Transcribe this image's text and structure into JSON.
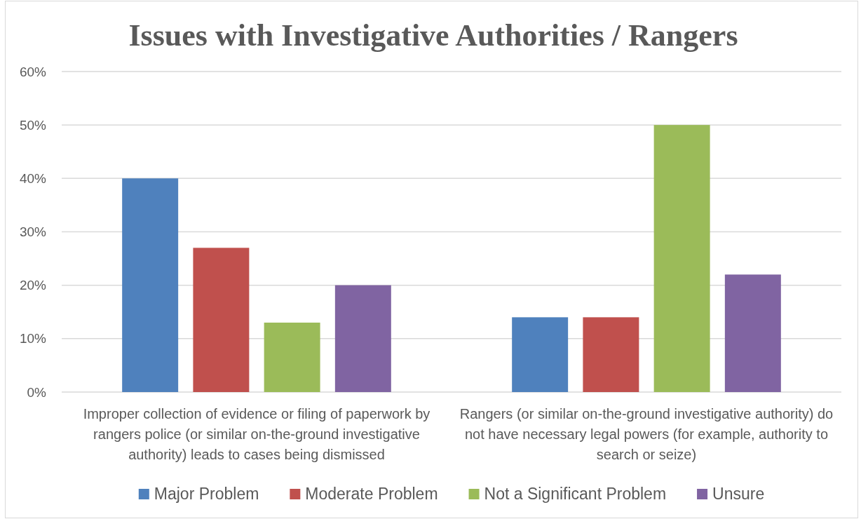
{
  "chart_data": {
    "type": "bar",
    "title": "Issues with Investigative Authorities / Rangers",
    "categories": [
      "Improper collection of evidence or filing of paperwork by rangers police (or similar on-the-ground investigative authority) leads to cases being dismissed",
      "Rangers (or similar on-the-ground investigative authority) do not have necessary legal powers (for example, authority to search or seize)"
    ],
    "series": [
      {
        "name": "Major Problem",
        "color": "#4f81bd",
        "values": [
          40,
          14
        ]
      },
      {
        "name": "Moderate Problem",
        "color": "#c0504d",
        "values": [
          27,
          14
        ]
      },
      {
        "name": "Not a Significant Problem",
        "color": "#9bbb59",
        "values": [
          13,
          50
        ]
      },
      {
        "name": "Unsure",
        "color": "#8064a2",
        "values": [
          20,
          22
        ]
      }
    ],
    "ylim": [
      0,
      60
    ],
    "yticks": [
      {
        "value": 0,
        "label": "0%"
      },
      {
        "value": 10,
        "label": "10%"
      },
      {
        "value": 20,
        "label": "20%"
      },
      {
        "value": 30,
        "label": "30%"
      },
      {
        "value": 40,
        "label": "40%"
      },
      {
        "value": 50,
        "label": "50%"
      },
      {
        "value": 60,
        "label": "60%"
      }
    ],
    "grid": "y",
    "legend": "bottom"
  }
}
